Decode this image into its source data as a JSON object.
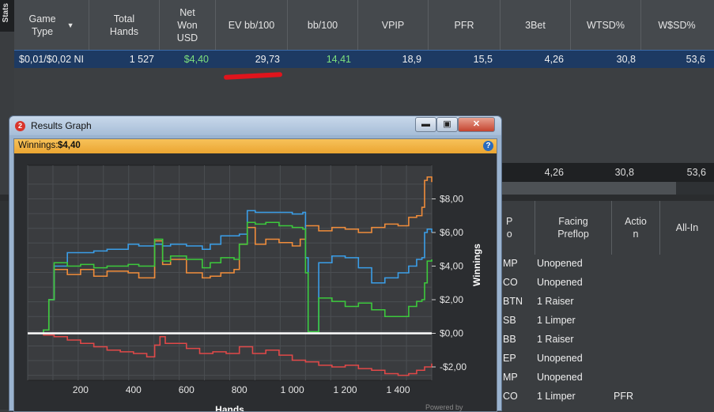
{
  "side_tab": "Stats",
  "columns": [
    "Game\nType",
    "Total\nHands",
    "Net\nWon\nUSD",
    "EV bb/100",
    "bb/100",
    "VPIP",
    "PFR",
    "3Bet",
    "WTSD%",
    "W$SD%"
  ],
  "row": {
    "game_type": "$0,01/$0,02 NI",
    "total_hands": "1 527",
    "net_won": "$4,40",
    "ev_bb100": "29,73",
    "bb100": "14,41",
    "vpip": "18,9",
    "pfr": "15,5",
    "three_bet": "4,26",
    "wtsd": "30,8",
    "wssd": "53,6"
  },
  "row2": {
    "three_bet": "4,26",
    "wtsd": "30,8",
    "wssd": "53,6"
  },
  "lower_grid": {
    "headers": [
      "P\no",
      "Facing\nPreflop",
      "Actio\nn",
      "All-In"
    ],
    "rows": [
      {
        "pos": "MP",
        "facing": "Unopened",
        "action": ""
      },
      {
        "pos": "CO",
        "facing": "Unopened",
        "action": ""
      },
      {
        "pos": "BTN",
        "facing": "1 Raiser",
        "action": ""
      },
      {
        "pos": "SB",
        "facing": "1 Limper",
        "action": ""
      },
      {
        "pos": "BB",
        "facing": "1 Raiser",
        "action": ""
      },
      {
        "pos": "EP",
        "facing": "Unopened",
        "action": ""
      },
      {
        "pos": "MP",
        "facing": "Unopened",
        "action": ""
      },
      {
        "pos": "CO",
        "facing": "1 Limper",
        "action": "PFR"
      }
    ]
  },
  "window": {
    "title": "Results Graph",
    "icon_label": "2",
    "winnings_label": "Winnings:",
    "winnings_value": "$4,40",
    "powered": "Powered by"
  },
  "chart_data": {
    "type": "line",
    "xlabel": "Hands",
    "ylabel": "Winnings",
    "xlim": [
      0,
      1527
    ],
    "ylim": [
      -2.8,
      10.0
    ],
    "xticks": [
      200,
      400,
      600,
      800,
      1000,
      1200,
      1400
    ],
    "xtick_labels": [
      "200",
      "400",
      "600",
      "800",
      "1 000",
      "1 200",
      "1 400"
    ],
    "yticks": [
      -2,
      0,
      2,
      4,
      6,
      8
    ],
    "ytick_labels": [
      "-$2,00",
      "$0,00",
      "$2,00",
      "$4,00",
      "$6,00",
      "$8,00"
    ],
    "grid": true,
    "series": [
      {
        "color": "#f08c3a",
        "x": [
          0,
          60,
          80,
          100,
          150,
          200,
          250,
          300,
          380,
          420,
          480,
          510,
          540,
          600,
          660,
          690,
          730,
          780,
          800,
          830,
          860,
          900,
          950,
          1000,
          1030,
          1050,
          1100,
          1150,
          1200,
          1250,
          1300,
          1350,
          1400,
          1440,
          1470,
          1490,
          1500,
          1510,
          1527
        ],
        "y": [
          0,
          0.2,
          2.0,
          3.8,
          3.5,
          3.8,
          3.4,
          3.7,
          3.6,
          3.3,
          5.5,
          4.1,
          4.4,
          3.6,
          3.3,
          3.4,
          3.6,
          3.8,
          5.3,
          6.3,
          5.3,
          5.6,
          5.4,
          5.2,
          5.6,
          6.4,
          6.1,
          6.3,
          6.2,
          6.0,
          6.3,
          6.5,
          6.4,
          6.9,
          7.0,
          7.5,
          9.1,
          9.3,
          9.0
        ]
      },
      {
        "color": "#3a9ee8",
        "x": [
          0,
          60,
          80,
          100,
          150,
          200,
          250,
          300,
          380,
          420,
          480,
          510,
          540,
          600,
          660,
          690,
          730,
          780,
          800,
          830,
          860,
          900,
          950,
          1000,
          1040,
          1050,
          1060,
          1100,
          1150,
          1200,
          1250,
          1300,
          1350,
          1400,
          1440,
          1470,
          1490,
          1500,
          1510,
          1527
        ],
        "y": [
          0,
          0.2,
          2.0,
          4.0,
          4.8,
          4.8,
          4.9,
          5.0,
          5.3,
          5.2,
          5.3,
          5.2,
          5.3,
          5.2,
          5.0,
          5.3,
          5.8,
          5.8,
          5.9,
          7.3,
          7.2,
          7.2,
          7.2,
          7.1,
          7.2,
          4.5,
          0.1,
          4.2,
          4.6,
          4.5,
          3.9,
          3.0,
          3.3,
          3.6,
          4.0,
          4.4,
          4.5,
          6.0,
          6.2,
          6.0
        ]
      },
      {
        "color": "#3cc93c",
        "x": [
          0,
          60,
          80,
          100,
          150,
          200,
          250,
          300,
          380,
          420,
          480,
          510,
          540,
          600,
          660,
          690,
          730,
          780,
          800,
          830,
          860,
          900,
          950,
          1000,
          1040,
          1050,
          1060,
          1100,
          1150,
          1200,
          1250,
          1300,
          1350,
          1400,
          1440,
          1470,
          1490,
          1500,
          1510,
          1527
        ],
        "y": [
          0,
          0.2,
          2.0,
          4.2,
          4.0,
          4.1,
          3.9,
          4.0,
          4.1,
          4.0,
          5.6,
          4.3,
          4.6,
          4.4,
          3.9,
          4.2,
          4.5,
          4.4,
          5.3,
          6.6,
          6.5,
          6.6,
          6.4,
          6.3,
          6.2,
          3.6,
          0.1,
          2.1,
          1.9,
          1.6,
          1.8,
          1.4,
          1.0,
          1.0,
          1.6,
          1.9,
          2.0,
          3.0,
          4.3,
          4.4
        ]
      },
      {
        "color": "#e04848",
        "x": [
          0,
          60,
          100,
          150,
          200,
          250,
          300,
          350,
          400,
          450,
          480,
          500,
          520,
          550,
          600,
          650,
          700,
          750,
          800,
          850,
          900,
          950,
          1000,
          1050,
          1100,
          1150,
          1200,
          1250,
          1300,
          1350,
          1400,
          1440,
          1470,
          1500,
          1527
        ],
        "y": [
          0,
          -0.1,
          -0.2,
          -0.4,
          -0.6,
          -0.8,
          -1.0,
          -1.1,
          -1.2,
          -1.4,
          -0.7,
          -0.2,
          -0.6,
          -0.6,
          -0.9,
          -1.2,
          -1.1,
          -1.2,
          -0.8,
          -1.2,
          -1.0,
          -1.3,
          -1.6,
          -1.7,
          -1.9,
          -2.0,
          -1.9,
          -2.1,
          -2.2,
          -2.4,
          -2.5,
          -2.4,
          -2.2,
          -2.0,
          -1.8
        ]
      },
      {
        "color": "#ffffff",
        "x": [
          0,
          1527
        ],
        "y": [
          0,
          0
        ]
      }
    ]
  }
}
